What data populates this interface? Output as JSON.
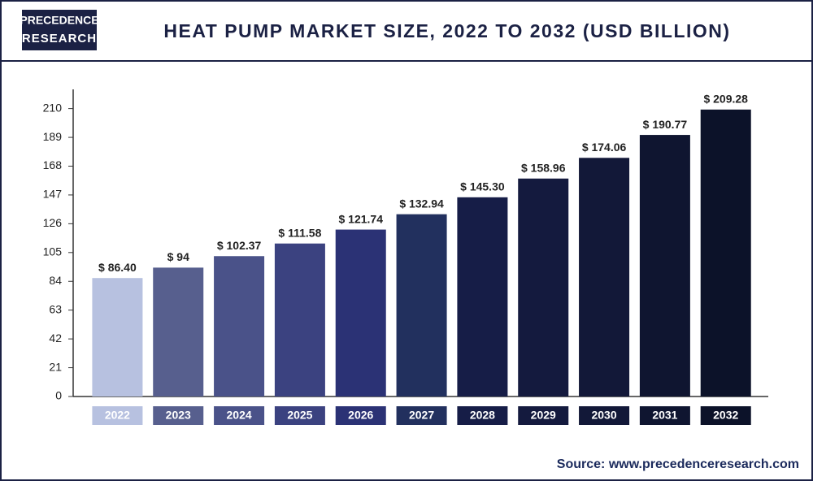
{
  "logo": [
    "PRECEDENCE",
    "RESEARCH"
  ],
  "source": "Source: www.precedenceresearch.com",
  "chart_data": {
    "type": "bar",
    "title": "HEAT PUMP MARKET SIZE, 2022 TO 2032 (USD BILLION)",
    "categories": [
      "2022",
      "2023",
      "2024",
      "2025",
      "2026",
      "2027",
      "2028",
      "2029",
      "2030",
      "2031",
      "2032"
    ],
    "values": [
      86.4,
      94,
      102.37,
      111.58,
      121.74,
      132.94,
      145.3,
      158.96,
      174.06,
      190.77,
      209.28
    ],
    "value_labels": [
      "$ 86.40",
      "$ 94",
      "$ 102.37",
      "$ 111.58",
      "$ 121.74",
      "$ 132.94",
      "$ 145.30",
      "$ 158.96",
      "$ 174.06",
      "$ 190.77",
      "$ 209.28"
    ],
    "colors": [
      "#b7c1e0",
      "#575f8e",
      "#4a5289",
      "#3b4280",
      "#2b3275",
      "#22305e",
      "#161d47",
      "#141a3e",
      "#121838",
      "#0f1530",
      "#0c1229"
    ],
    "ylim": [
      0,
      224
    ],
    "yticks": [
      0,
      21,
      42,
      63,
      84,
      105,
      126,
      147,
      168,
      189,
      210
    ]
  }
}
